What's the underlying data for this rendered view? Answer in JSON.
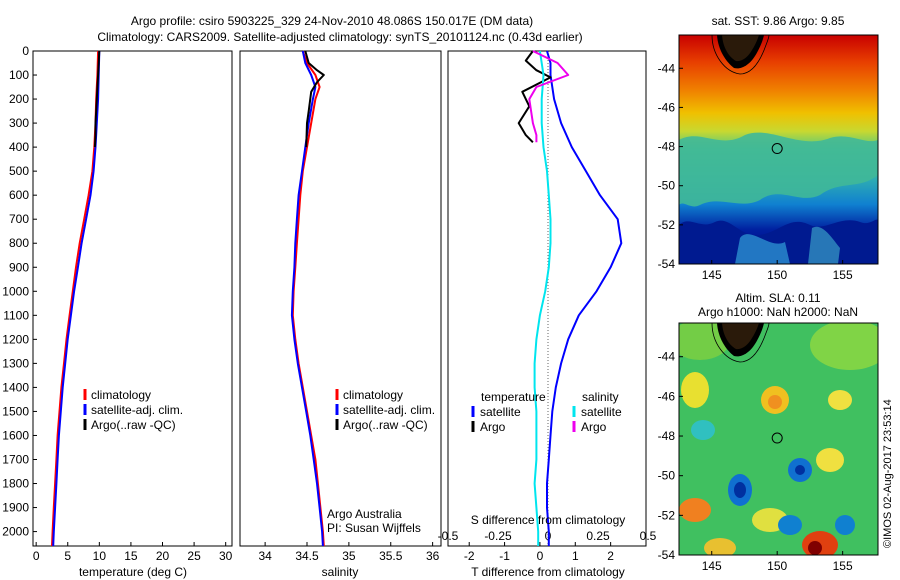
{
  "title": {
    "line1": "Argo profile: csiro 5903225_329 24-Nov-2010 48.086S 150.017E (DM data)",
    "line2": "Climatology: CARS2009. Satellite-adjusted climatology: synTS_20101124.nc (0.43d earlier)"
  },
  "stamp": "©IMOS 02-Aug-2017 23:53:14",
  "colors": {
    "climatology": "#ff0000",
    "satellite": "#0000ff",
    "argo": "#000000",
    "salinity_satellite": "#00e5ee",
    "salinity_argo": "#ee00ee"
  },
  "chart_data": [
    {
      "type": "line",
      "id": "temperature",
      "xlabel": "temperature (deg C)",
      "ylabel": "",
      "xlim": [
        -0.5,
        31
      ],
      "ylim": [
        2060,
        0
      ],
      "xticks": [
        "0",
        "5",
        "10",
        "15",
        "20",
        "25",
        "30"
      ],
      "yticks": [
        "0",
        "100",
        "200",
        "300",
        "400",
        "500",
        "600",
        "700",
        "800",
        "900",
        "1000",
        "1100",
        "1200",
        "1300",
        "1400",
        "1500",
        "1600",
        "1700",
        "1800",
        "1900",
        "2000"
      ],
      "legend": [
        "climatology",
        "satellite-adj. clim.",
        "Argo(..raw -QC)"
      ],
      "series": [
        {
          "name": "climatology",
          "color_key": "climatology",
          "points": [
            [
              9.8,
              0
            ],
            [
              9.7,
              100
            ],
            [
              9.5,
              200
            ],
            [
              9.4,
              300
            ],
            [
              9.2,
              400
            ],
            [
              8.9,
              500
            ],
            [
              8.3,
              600
            ],
            [
              7.6,
              700
            ],
            [
              6.9,
              800
            ],
            [
              6.3,
              900
            ],
            [
              5.8,
              1000
            ],
            [
              5.3,
              1100
            ],
            [
              4.8,
              1200
            ],
            [
              4.4,
              1300
            ],
            [
              4.0,
              1400
            ],
            [
              3.7,
              1500
            ],
            [
              3.4,
              1600
            ],
            [
              3.2,
              1700
            ],
            [
              3.0,
              1800
            ],
            [
              2.8,
              1900
            ],
            [
              2.6,
              2000
            ],
            [
              2.5,
              2060
            ]
          ]
        },
        {
          "name": "satellite-adj. clim.",
          "color_key": "satellite",
          "points": [
            [
              10.0,
              0
            ],
            [
              9.9,
              100
            ],
            [
              9.8,
              200
            ],
            [
              9.6,
              300
            ],
            [
              9.4,
              400
            ],
            [
              9.1,
              500
            ],
            [
              8.6,
              600
            ],
            [
              7.9,
              700
            ],
            [
              7.2,
              800
            ],
            [
              6.6,
              900
            ],
            [
              6.0,
              1000
            ],
            [
              5.5,
              1100
            ],
            [
              5.0,
              1200
            ],
            [
              4.6,
              1300
            ],
            [
              4.2,
              1400
            ],
            [
              3.9,
              1500
            ],
            [
              3.6,
              1600
            ],
            [
              3.4,
              1700
            ],
            [
              3.2,
              1800
            ],
            [
              3.0,
              1900
            ],
            [
              2.8,
              2000
            ],
            [
              2.7,
              2060
            ]
          ]
        },
        {
          "name": "Argo(..raw -QC)",
          "color_key": "argo",
          "points": [
            [
              10.0,
              0
            ],
            [
              9.9,
              50
            ],
            [
              9.8,
              100
            ],
            [
              9.7,
              150
            ],
            [
              9.6,
              200
            ],
            [
              9.5,
              250
            ],
            [
              9.4,
              300
            ],
            [
              9.4,
              350
            ],
            [
              9.3,
              400
            ]
          ]
        }
      ]
    },
    {
      "type": "line",
      "id": "salinity",
      "xlabel": "salinity",
      "ylabel": "",
      "xlim": [
        33.7,
        36.1
      ],
      "ylim": [
        2060,
        0
      ],
      "xticks": [
        "34",
        "34.5",
        "35",
        "35.5",
        "36"
      ],
      "legend": [
        "climatology",
        "satellite-adj. clim.",
        "Argo(..raw -QC)"
      ],
      "annotation": [
        "Argo Australia",
        "PI: Susan Wijffels"
      ],
      "series": [
        {
          "name": "climatology",
          "color_key": "climatology",
          "points": [
            [
              34.45,
              0
            ],
            [
              34.5,
              50
            ],
            [
              34.6,
              100
            ],
            [
              34.65,
              150
            ],
            [
              34.6,
              200
            ],
            [
              34.55,
              300
            ],
            [
              34.5,
              400
            ],
            [
              34.45,
              500
            ],
            [
              34.42,
              600
            ],
            [
              34.4,
              700
            ],
            [
              34.38,
              800
            ],
            [
              34.36,
              900
            ],
            [
              34.34,
              1000
            ],
            [
              34.33,
              1100
            ],
            [
              34.36,
              1200
            ],
            [
              34.4,
              1300
            ],
            [
              34.45,
              1400
            ],
            [
              34.5,
              1500
            ],
            [
              34.55,
              1600
            ],
            [
              34.6,
              1700
            ],
            [
              34.63,
              1800
            ],
            [
              34.66,
              1900
            ],
            [
              34.69,
              2000
            ],
            [
              34.7,
              2060
            ]
          ]
        },
        {
          "name": "satellite-adj. clim.",
          "color_key": "satellite",
          "points": [
            [
              34.45,
              0
            ],
            [
              34.48,
              50
            ],
            [
              34.55,
              100
            ],
            [
              34.6,
              150
            ],
            [
              34.57,
              200
            ],
            [
              34.52,
              300
            ],
            [
              34.48,
              400
            ],
            [
              34.44,
              500
            ],
            [
              34.4,
              600
            ],
            [
              34.38,
              700
            ],
            [
              34.36,
              800
            ],
            [
              34.35,
              900
            ],
            [
              34.33,
              1000
            ],
            [
              34.32,
              1100
            ],
            [
              34.35,
              1200
            ],
            [
              34.39,
              1300
            ],
            [
              34.44,
              1400
            ],
            [
              34.49,
              1500
            ],
            [
              34.54,
              1600
            ],
            [
              34.58,
              1700
            ],
            [
              34.62,
              1800
            ],
            [
              34.65,
              1900
            ],
            [
              34.68,
              2000
            ],
            [
              34.69,
              2060
            ]
          ]
        },
        {
          "name": "Argo(..raw -QC)",
          "color_key": "argo",
          "points": [
            [
              34.48,
              0
            ],
            [
              34.52,
              50
            ],
            [
              34.62,
              80
            ],
            [
              34.7,
              100
            ],
            [
              34.62,
              130
            ],
            [
              34.55,
              170
            ],
            [
              34.52,
              250
            ],
            [
              34.5,
              300
            ],
            [
              34.49,
              400
            ]
          ]
        }
      ]
    },
    {
      "type": "line",
      "id": "difference",
      "xlabel": "T difference from climatology",
      "xlabel_top": "S difference from climatology",
      "xlim": [
        -2.6,
        3.0
      ],
      "ylim": [
        2060,
        0
      ],
      "xticks": [
        "-2",
        "-1",
        "0",
        "1",
        "2"
      ],
      "xticks_top": [
        "-0.5",
        "-0.25",
        "0",
        "0.25",
        "0.5"
      ],
      "legend_titles": [
        "temperature",
        "salinity"
      ],
      "legend": [
        "satellite",
        "Argo",
        "satellite",
        "Argo"
      ],
      "series": [
        {
          "name": "temperature satellite",
          "color_key": "satellite",
          "points": [
            [
              0.2,
              0
            ],
            [
              0.3,
              50
            ],
            [
              0.3,
              100
            ],
            [
              0.4,
              200
            ],
            [
              0.6,
              300
            ],
            [
              0.9,
              400
            ],
            [
              1.3,
              500
            ],
            [
              1.7,
              600
            ],
            [
              2.2,
              700
            ],
            [
              2.3,
              800
            ],
            [
              2.0,
              900
            ],
            [
              1.6,
              1000
            ],
            [
              1.1,
              1100
            ],
            [
              0.8,
              1200
            ],
            [
              0.6,
              1300
            ],
            [
              0.45,
              1400
            ],
            [
              0.35,
              1500
            ],
            [
              0.3,
              1600
            ],
            [
              0.25,
              1700
            ],
            [
              0.2,
              1800
            ],
            [
              0.2,
              1900
            ],
            [
              0.25,
              2000
            ],
            [
              0.25,
              2060
            ]
          ]
        },
        {
          "name": "temperature Argo",
          "color_key": "argo",
          "points": [
            [
              -0.2,
              0
            ],
            [
              -0.4,
              40
            ],
            [
              -0.1,
              80
            ],
            [
              0.3,
              110
            ],
            [
              -0.5,
              170
            ],
            [
              -0.3,
              230
            ],
            [
              -0.6,
              300
            ],
            [
              -0.4,
              350
            ],
            [
              -0.2,
              380
            ]
          ]
        },
        {
          "name": "salinity satellite",
          "color_key": "salinity_satellite",
          "points": [
            [
              0.0,
              0
            ],
            [
              0.05,
              50
            ],
            [
              0.1,
              100
            ],
            [
              0.05,
              200
            ],
            [
              0.05,
              300
            ],
            [
              0.1,
              400
            ],
            [
              0.2,
              500
            ],
            [
              0.25,
              600
            ],
            [
              0.3,
              700
            ],
            [
              0.3,
              800
            ],
            [
              0.25,
              900
            ],
            [
              0.15,
              1000
            ],
            [
              0.0,
              1100
            ],
            [
              -0.1,
              1200
            ],
            [
              -0.15,
              1300
            ],
            [
              -0.15,
              1400
            ],
            [
              -0.1,
              1500
            ],
            [
              -0.1,
              1600
            ],
            [
              -0.1,
              1700
            ],
            [
              -0.15,
              1800
            ],
            [
              -0.1,
              1900
            ],
            [
              -0.05,
              2000
            ],
            [
              -0.05,
              2060
            ]
          ]
        },
        {
          "name": "salinity Argo",
          "color_key": "salinity_argo",
          "points": [
            [
              -0.2,
              0
            ],
            [
              0.5,
              50
            ],
            [
              0.8,
              100
            ],
            [
              -0.1,
              150
            ],
            [
              -0.3,
              200
            ],
            [
              -0.2,
              300
            ],
            [
              -0.1,
              350
            ],
            [
              -0.1,
              380
            ]
          ]
        }
      ]
    },
    {
      "type": "heatmap",
      "id": "sst-map",
      "title": "sat. SST: 9.86 Argo: 9.85",
      "xlim": [
        142.5,
        157.7
      ],
      "ylim": [
        -54,
        -42.3
      ],
      "xticks": [
        "145",
        "150",
        "155"
      ],
      "yticks": [
        "-44",
        "-46",
        "-48",
        "-50",
        "-52",
        "-54"
      ],
      "marker": {
        "lon": 150.0,
        "lat": -48.1
      }
    },
    {
      "type": "heatmap",
      "id": "sla-map",
      "title": "Altim. SLA: 0.11",
      "subtitle": "Argo h1000: NaN h2000: NaN",
      "xlim": [
        142.5,
        157.7
      ],
      "ylim": [
        -54,
        -42.3
      ],
      "xticks": [
        "145",
        "150",
        "155"
      ],
      "yticks": [
        "-44",
        "-46",
        "-48",
        "-50",
        "-52",
        "-54"
      ],
      "marker": {
        "lon": 150.0,
        "lat": -48.1
      }
    }
  ]
}
